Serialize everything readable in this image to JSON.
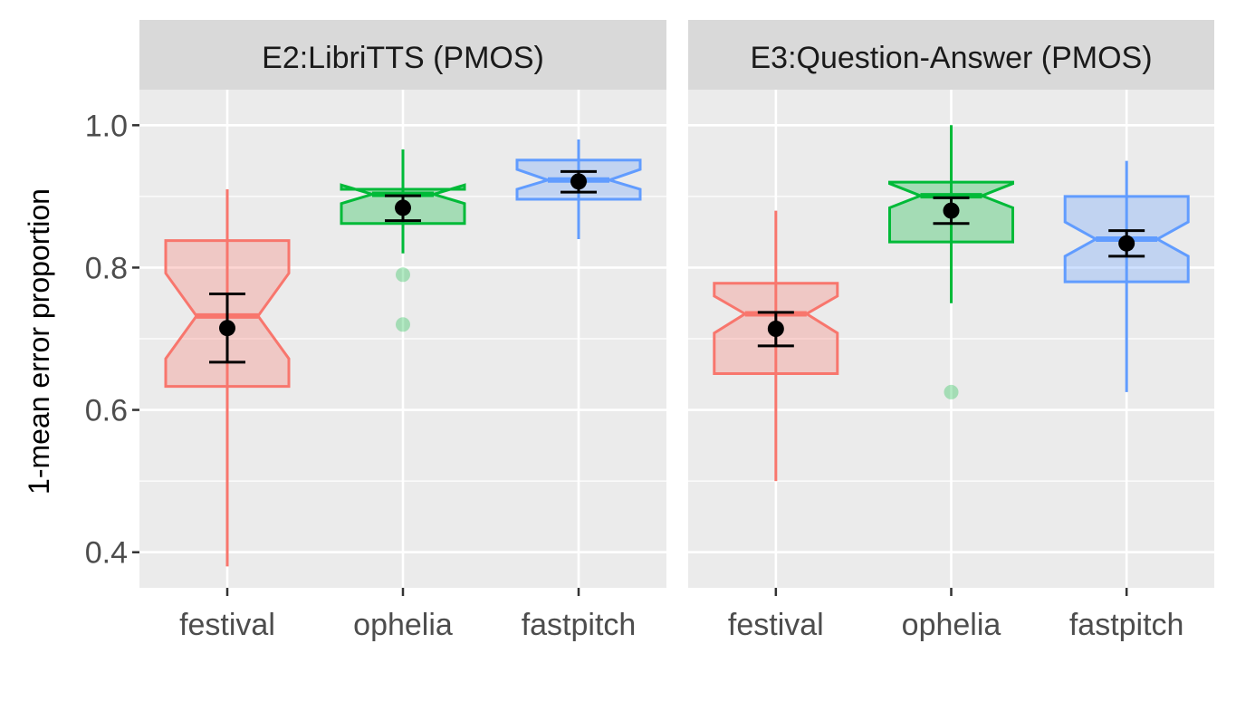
{
  "chart_data": {
    "type": "box",
    "ylabel": "1-mean error proportion",
    "xlabel": "",
    "ylim": [
      0.35,
      1.05
    ],
    "y_ticks": [
      0.4,
      0.6,
      0.8,
      1.0
    ],
    "y_tick_labels": [
      "0.4",
      "0.6",
      "0.8",
      "1.0"
    ],
    "grid": true,
    "legend": "none",
    "categories": [
      "festival",
      "ophelia",
      "fastpitch"
    ],
    "colors": {
      "festival": "#F8766D",
      "ophelia": "#00BA38",
      "fastpitch": "#619CFF"
    },
    "panels": [
      {
        "title": "E2:LibriTTS (PMOS)",
        "boxes": [
          {
            "category": "festival",
            "whisker_low": 0.38,
            "q1": 0.633,
            "median": 0.732,
            "q3": 0.838,
            "whisker_high": 0.91,
            "notch_low": 0.672,
            "notch_high": 0.792,
            "outliers": [],
            "mean": 0.715,
            "ci_low": 0.667,
            "ci_high": 0.763
          },
          {
            "category": "ophelia",
            "whisker_low": 0.82,
            "q1": 0.862,
            "median": 0.903,
            "q3": 0.91,
            "whisker_high": 0.966,
            "notch_low": 0.89,
            "notch_high": 0.916,
            "outliers": [
              0.79,
              0.72
            ],
            "mean": 0.884,
            "ci_low": 0.866,
            "ci_high": 0.901
          },
          {
            "category": "fastpitch",
            "whisker_low": 0.84,
            "q1": 0.896,
            "median": 0.923,
            "q3": 0.951,
            "whisker_high": 0.98,
            "notch_low": 0.91,
            "notch_high": 0.938,
            "outliers": [],
            "mean": 0.921,
            "ci_low": 0.906,
            "ci_high": 0.935
          }
        ]
      },
      {
        "title": "E3:Question-Answer (PMOS)",
        "boxes": [
          {
            "category": "festival",
            "whisker_low": 0.5,
            "q1": 0.651,
            "median": 0.735,
            "q3": 0.778,
            "whisker_high": 0.88,
            "notch_low": 0.708,
            "notch_high": 0.76,
            "outliers": [],
            "mean": 0.714,
            "ci_low": 0.69,
            "ci_high": 0.737
          },
          {
            "category": "ophelia",
            "whisker_low": 0.75,
            "q1": 0.836,
            "median": 0.901,
            "q3": 0.92,
            "whisker_high": 1.0,
            "notch_low": 0.884,
            "notch_high": 0.918,
            "outliers": [
              0.625
            ],
            "mean": 0.88,
            "ci_low": 0.862,
            "ci_high": 0.898
          },
          {
            "category": "fastpitch",
            "whisker_low": 0.625,
            "q1": 0.78,
            "median": 0.84,
            "q3": 0.9,
            "whisker_high": 0.95,
            "notch_low": 0.816,
            "notch_high": 0.864,
            "outliers": [],
            "mean": 0.834,
            "ci_low": 0.816,
            "ci_high": 0.852
          }
        ]
      }
    ]
  }
}
